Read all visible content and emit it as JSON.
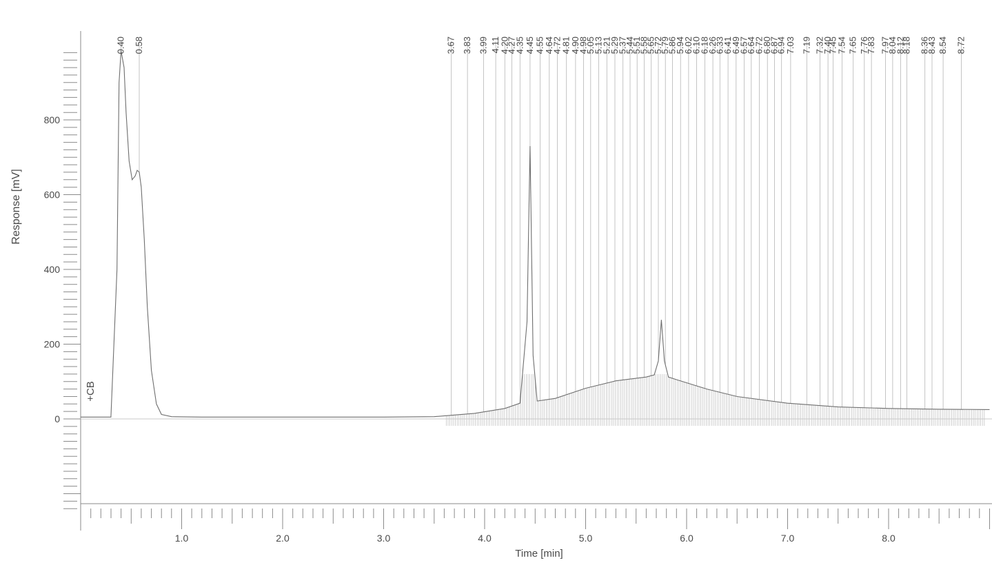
{
  "chart_data": {
    "type": "line",
    "xlabel": "Time [min]",
    "ylabel": "Response [mV]",
    "xlim": [
      0,
      9.0
    ],
    "ylim": [
      -240,
      990
    ],
    "x_ticks": [
      "1.0",
      "2.0",
      "3.0",
      "4.0",
      "5.0",
      "6.0",
      "7.0",
      "8.0"
    ],
    "y_ticks": [
      "0",
      "200",
      "400",
      "600",
      "800"
    ],
    "event_label": "+CB",
    "event_time": 0.1,
    "colors": {
      "trace": "#6e6e6e",
      "axis": "#8a8a8a",
      "marks": "#b5b5b5"
    },
    "series": [
      {
        "x": [
          0,
          0.3,
          0.36,
          0.38,
          0.4,
          0.43,
          0.45,
          0.48,
          0.51,
          0.54,
          0.56,
          0.58,
          0.6,
          0.63,
          0.66,
          0.7,
          0.75,
          0.8,
          0.9,
          1.2,
          2.0,
          3.0,
          3.5,
          3.9,
          4.2,
          4.35,
          4.42,
          4.45,
          4.48,
          4.52,
          4.7,
          5.0,
          5.3,
          5.6,
          5.68,
          5.72,
          5.75,
          5.78,
          5.82,
          5.9,
          6.2,
          6.5,
          7.0,
          7.5,
          8.0,
          8.5,
          9.0
        ],
        "y": [
          5,
          5,
          400,
          900,
          985,
          940,
          820,
          690,
          640,
          650,
          665,
          660,
          620,
          480,
          300,
          130,
          40,
          12,
          6,
          5,
          5,
          5,
          6,
          15,
          28,
          42,
          260,
          730,
          170,
          48,
          55,
          82,
          102,
          112,
          118,
          155,
          265,
          155,
          112,
          105,
          80,
          60,
          42,
          32,
          28,
          26,
          25
        ]
      }
    ],
    "peak_labels": [
      {
        "x": 0.4,
        "label": "0.40"
      },
      {
        "x": 0.58,
        "label": "0.58"
      },
      {
        "x": 3.67,
        "label": "3.67"
      },
      {
        "x": 3.83,
        "label": "3.83"
      },
      {
        "x": 3.99,
        "label": "3.99"
      },
      {
        "x": 4.11,
        "label": "4.11"
      },
      {
        "x": 4.2,
        "label": "4.20"
      },
      {
        "x": 4.27,
        "label": "4.27"
      },
      {
        "x": 4.35,
        "label": "4.35"
      },
      {
        "x": 4.45,
        "label": "4.45"
      },
      {
        "x": 4.55,
        "label": "4.55"
      },
      {
        "x": 4.64,
        "label": "4.64"
      },
      {
        "x": 4.72,
        "label": "4.72"
      },
      {
        "x": 4.81,
        "label": "4.81"
      },
      {
        "x": 4.9,
        "label": "4.90"
      },
      {
        "x": 4.98,
        "label": "4.98"
      },
      {
        "x": 5.05,
        "label": "5.05"
      },
      {
        "x": 5.13,
        "label": "5.13"
      },
      {
        "x": 5.21,
        "label": "5.21"
      },
      {
        "x": 5.29,
        "label": "5.29"
      },
      {
        "x": 5.37,
        "label": "5.37"
      },
      {
        "x": 5.44,
        "label": "5.44"
      },
      {
        "x": 5.51,
        "label": "5.51"
      },
      {
        "x": 5.58,
        "label": "5.58"
      },
      {
        "x": 5.65,
        "label": "5.65"
      },
      {
        "x": 5.72,
        "label": "5.72"
      },
      {
        "x": 5.79,
        "label": "5.79"
      },
      {
        "x": 5.86,
        "label": "5.86"
      },
      {
        "x": 5.94,
        "label": "5.94"
      },
      {
        "x": 6.02,
        "label": "6.02"
      },
      {
        "x": 6.1,
        "label": "6.10"
      },
      {
        "x": 6.18,
        "label": "6.18"
      },
      {
        "x": 6.26,
        "label": "6.26"
      },
      {
        "x": 6.33,
        "label": "6.33"
      },
      {
        "x": 6.41,
        "label": "6.41"
      },
      {
        "x": 6.49,
        "label": "6.49"
      },
      {
        "x": 6.57,
        "label": "6.57"
      },
      {
        "x": 6.64,
        "label": "6.64"
      },
      {
        "x": 6.72,
        "label": "6.72"
      },
      {
        "x": 6.8,
        "label": "6.80"
      },
      {
        "x": 6.87,
        "label": "6.87"
      },
      {
        "x": 6.94,
        "label": "6.94"
      },
      {
        "x": 7.03,
        "label": "7.03"
      },
      {
        "x": 7.19,
        "label": "7.19"
      },
      {
        "x": 7.32,
        "label": "7.32"
      },
      {
        "x": 7.4,
        "label": "7.40"
      },
      {
        "x": 7.45,
        "label": "7.45"
      },
      {
        "x": 7.54,
        "label": "7.54"
      },
      {
        "x": 7.65,
        "label": "7.65"
      },
      {
        "x": 7.76,
        "label": "7.76"
      },
      {
        "x": 7.83,
        "label": "7.83"
      },
      {
        "x": 7.97,
        "label": "7.97"
      },
      {
        "x": 8.04,
        "label": "8.04"
      },
      {
        "x": 8.12,
        "label": "8.12"
      },
      {
        "x": 8.18,
        "label": "8.18"
      },
      {
        "x": 8.36,
        "label": "8.36"
      },
      {
        "x": 8.43,
        "label": "8.43"
      },
      {
        "x": 8.54,
        "label": "8.54"
      },
      {
        "x": 8.72,
        "label": "8.72"
      }
    ]
  }
}
